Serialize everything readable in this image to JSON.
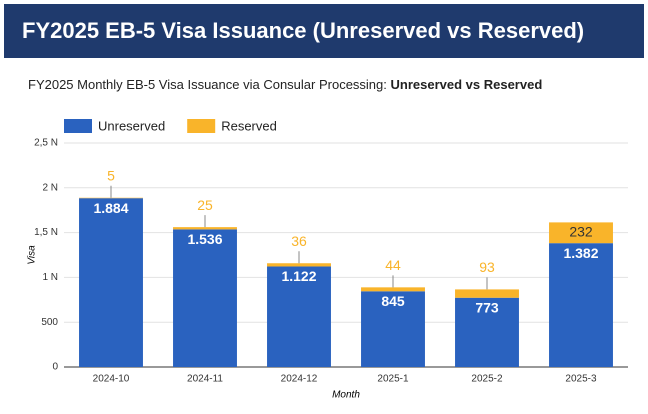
{
  "header": {
    "title": "FY2025 EB-5 Visa Issuance (Unreserved vs Reserved)"
  },
  "chart_data": {
    "type": "stacked-bar",
    "subtitle": "FY2025 Monthly EB-5 Visa Issuance via Consular Processing: ",
    "subtitle_bold": "Unreserved vs Reserved",
    "categories": [
      "2024-10",
      "2024-11",
      "2024-12",
      "2025-1",
      "2025-2",
      "2025-3"
    ],
    "series": [
      {
        "name": "Unreserved",
        "color": "#2a62bf",
        "values": [
          1884,
          1536,
          1122,
          845,
          773,
          1382
        ],
        "value_labels": [
          "1.884",
          "1.536",
          "1.122",
          "845",
          "773",
          "1.382"
        ]
      },
      {
        "name": "Reserved",
        "color": "#f9b42a",
        "values": [
          5,
          25,
          36,
          44,
          93,
          232
        ]
      }
    ],
    "ylim": [
      0,
      2500
    ],
    "yticks": [
      0,
      500,
      {
        "value": 1000,
        "label": "1 N"
      },
      {
        "value": 1500,
        "label": "1,5 N"
      },
      {
        "value": 2000,
        "label": "2 N"
      },
      {
        "value": 2500,
        "label": "2,5 N"
      }
    ],
    "ylabel": "Visa",
    "xlabel": "Month",
    "grid": true
  }
}
